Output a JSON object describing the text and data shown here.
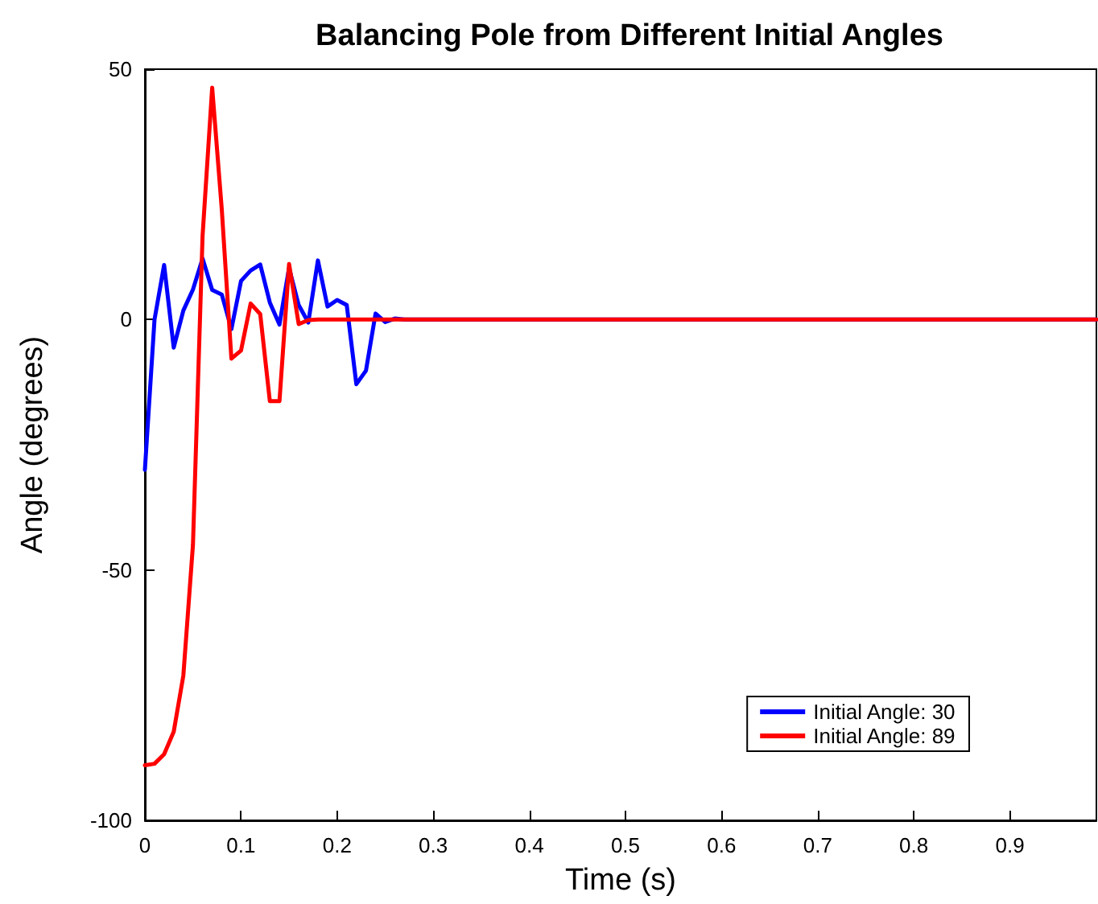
{
  "chart_data": {
    "type": "line",
    "title": "Balancing Pole from Different Initial Angles",
    "xlabel": "Time (s)",
    "ylabel": "Angle (degrees)",
    "xlim": [
      0,
      0.99
    ],
    "xticks": [
      0,
      0.1,
      0.2,
      0.3,
      0.4,
      0.5,
      0.6,
      0.7,
      0.8,
      0.9
    ],
    "ylim": [
      -100,
      50
    ],
    "yticks": [
      -100,
      -50,
      0,
      50
    ],
    "grid": false,
    "legend": "bottom right",
    "marker": "none",
    "line_style": "solid",
    "series": [
      {
        "name": "Initial Angle: 30",
        "color": "#0000ff",
        "x": [
          0,
          0.01,
          0.02,
          0.03,
          0.04,
          0.05,
          0.06,
          0.07,
          0.08,
          0.09,
          0.1,
          0.11,
          0.12,
          0.13,
          0.14,
          0.15,
          0.16,
          0.17,
          0.18,
          0.19,
          0.2,
          0.21,
          0.22,
          0.23,
          0.24,
          0.25,
          0.26,
          0.27,
          0.99
        ],
        "values": [
          -30,
          0,
          10.9,
          -5.6,
          1.8,
          6,
          12.2,
          5.9,
          5,
          -1.9,
          7.7,
          9.8,
          11,
          3.4,
          -1,
          10.3,
          2.9,
          -0.6,
          11.8,
          2.6,
          3.9,
          2.9,
          -12.9,
          -10.2,
          1.2,
          -0.5,
          0.2,
          0,
          0
        ]
      },
      {
        "name": "Initial Angle: 89",
        "color": "#ff0000",
        "x": [
          0,
          0.01,
          0.02,
          0.03,
          0.04,
          0.05,
          0.06,
          0.07,
          0.08,
          0.09,
          0.1,
          0.11,
          0.12,
          0.13,
          0.14,
          0.15,
          0.16,
          0.17,
          0.18,
          0.99
        ],
        "values": [
          -89,
          -88.7,
          -86.8,
          -82.3,
          -71.1,
          -45,
          16.7,
          46.3,
          22,
          -7.8,
          -6.2,
          3.2,
          1.1,
          -16.3,
          -16.3,
          11.1,
          -0.9,
          -0.1,
          0,
          0
        ]
      }
    ]
  }
}
